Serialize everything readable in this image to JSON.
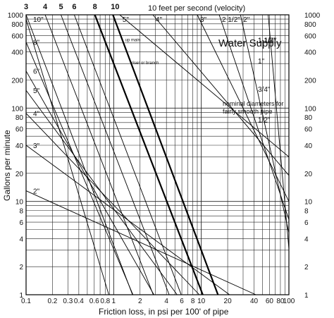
{
  "chart_data": {
    "type": "line",
    "title": "Water Supply",
    "xlabel": "Friction loss, in psi per 100' of pipe",
    "ylabel": "Gallons per minute",
    "x_scale": "log",
    "y_scale": "log",
    "xlim": [
      0.1,
      100
    ],
    "ylim": [
      1,
      1000
    ],
    "grid": true,
    "x_tick_labels": [
      {
        "value": 0.1,
        "label": "0.1"
      },
      {
        "value": 0.2,
        "label": "0.2"
      },
      {
        "value": 0.3,
        "label": "0.3"
      },
      {
        "value": 0.4,
        "label": "0.4"
      },
      {
        "value": 0.6,
        "label": "0.6"
      },
      {
        "value": 0.8,
        "label": "0.8"
      },
      {
        "value": 1,
        "label": "1"
      },
      {
        "value": 2,
        "label": "2"
      },
      {
        "value": 4,
        "label": "4"
      },
      {
        "value": 6,
        "label": "6"
      },
      {
        "value": 8,
        "label": "8"
      },
      {
        "value": 10,
        "label": "10"
      },
      {
        "value": 20,
        "label": "20"
      },
      {
        "value": 40,
        "label": "40"
      },
      {
        "value": 60,
        "label": "60"
      },
      {
        "value": 80,
        "label": "80"
      },
      {
        "value": 100,
        "label": "100"
      }
    ],
    "y_tick_labels": [
      {
        "value": 1000,
        "label": "1000"
      },
      {
        "value": 800,
        "label": "800"
      },
      {
        "value": 600,
        "label": "600"
      },
      {
        "value": 400,
        "label": "400"
      },
      {
        "value": 200,
        "label": "200"
      },
      {
        "value": 100,
        "label": "100"
      },
      {
        "value": 80,
        "label": "80"
      },
      {
        "value": 60,
        "label": "60"
      },
      {
        "value": 40,
        "label": "40"
      },
      {
        "value": 20,
        "label": "20"
      },
      {
        "value": 10,
        "label": "10"
      },
      {
        "value": 8,
        "label": "8"
      },
      {
        "value": 6,
        "label": "6"
      },
      {
        "value": 4,
        "label": "4"
      },
      {
        "value": 2,
        "label": "2"
      },
      {
        "value": 1,
        "label": "1"
      }
    ],
    "velocity_lines": {
      "label": "10 feet per second (velocity)",
      "lines": [
        {
          "label": "3",
          "value": 3,
          "bold": false,
          "start": [
            0.1,
            1000
          ],
          "end": [
            1.64,
            1
          ]
        },
        {
          "label": "4",
          "value": 4,
          "bold": false,
          "start": [
            0.165,
            1000
          ],
          "end": [
            2.83,
            1
          ]
        },
        {
          "label": "5",
          "value": 5,
          "bold": false,
          "start": [
            0.25,
            1000
          ],
          "end": [
            4.3,
            1
          ]
        },
        {
          "label": "6",
          "value": 6,
          "bold": false,
          "start": [
            0.355,
            1000
          ],
          "end": [
            5.9,
            1
          ]
        },
        {
          "label": "8",
          "value": 8,
          "bold": true,
          "start": [
            0.61,
            1000
          ],
          "end": [
            10.4,
            1
          ]
        },
        {
          "label": "10",
          "value": 10,
          "bold": true,
          "start": [
            0.98,
            1000
          ],
          "end": [
            15.5,
            1
          ]
        }
      ]
    },
    "diameter_lines": {
      "label": "nominal diameters for fairly smooth pipe",
      "lines": [
        {
          "label": "10\"",
          "start": [
            0.1,
            900
          ],
          "end": [
            0.88,
            1
          ]
        },
        {
          "label": "8\"",
          "start": [
            0.1,
            510
          ],
          "end": [
            1.66,
            1
          ]
        },
        {
          "label": "6\"",
          "start": [
            0.1,
            250
          ],
          "end": [
            2.88,
            1
          ]
        },
        {
          "label": "5\"",
          "start": [
            0.1,
            155
          ],
          "end": [
            5.3,
            1
          ]
        },
        {
          "label": "4\"",
          "start": [
            0.1,
            88
          ],
          "end": [
            9.5,
            1
          ]
        },
        {
          "label": "3\"",
          "start": [
            0.1,
            40
          ],
          "end": [
            21,
            1
          ]
        },
        {
          "label": "2\"",
          "start": [
            0.1,
            13
          ],
          "end": [
            42,
            1
          ]
        },
        {
          "label": "5\"",
          "start": [
            1.17,
            1000
          ],
          "end": [
            100,
            30
          ]
        },
        {
          "label": "4\"",
          "start": [
            2.8,
            1000
          ],
          "end": [
            100,
            19
          ]
        },
        {
          "label": "3\"",
          "start": [
            9,
            1000
          ],
          "end": [
            100,
            10
          ]
        },
        {
          "label": "2 1/2\"",
          "start": [
            16,
            1000
          ],
          "end": [
            100,
            6.4
          ]
        },
        {
          "label": "2\"",
          "start": [
            28,
            1000
          ],
          "end": [
            100,
            4.6
          ]
        },
        {
          "label": "1 1/2\"",
          "start": [
            58,
            1000
          ],
          "end": [
            100,
            3.1
          ]
        },
        {
          "label": "1-1/4\"",
          "start": [
            100,
            1000
          ],
          "end": [
            100,
            2
          ]
        },
        {
          "label": "1\"",
          "start": [
            100,
            600
          ],
          "end": [
            100,
            1.3
          ]
        },
        {
          "label": "3/4\"",
          "start": [
            100,
            300
          ],
          "end": [
            100,
            1
          ]
        },
        {
          "label": "1/2\"",
          "start": [
            100,
            140
          ],
          "end": [
            100,
            1
          ]
        }
      ]
    },
    "annotations": [
      {
        "text": "up main",
        "x": 1.35,
        "y": 520
      },
      {
        "text": "riser or branch",
        "x": 1.6,
        "y": 295
      }
    ]
  }
}
